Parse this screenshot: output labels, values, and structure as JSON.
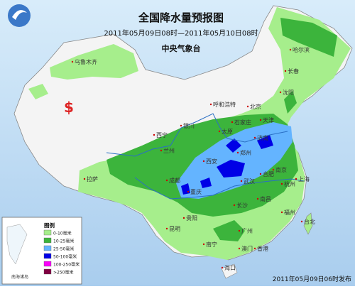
{
  "header": {
    "title": "全国降水量预报图",
    "subtitle": "2011年05月09日08时—2011年05月10日08时",
    "agency": "中央气象台"
  },
  "cities": [
    {
      "label": "乌鲁木齐"
    },
    {
      "label": "哈尔滨"
    },
    {
      "label": "长春"
    },
    {
      "label": "沈阳"
    },
    {
      "label": "呼和浩特"
    },
    {
      "label": "北京"
    },
    {
      "label": "天津"
    },
    {
      "label": "石家庄"
    },
    {
      "label": "银川"
    },
    {
      "label": "太原"
    },
    {
      "label": "济南"
    },
    {
      "label": "西宁"
    },
    {
      "label": "兰州"
    },
    {
      "label": "郑州"
    },
    {
      "label": "西安"
    },
    {
      "label": "合肥"
    },
    {
      "label": "南京"
    },
    {
      "label": "上海"
    },
    {
      "label": "拉萨"
    },
    {
      "label": "成都"
    },
    {
      "label": "武汉"
    },
    {
      "label": "杭州"
    },
    {
      "label": "重庆"
    },
    {
      "label": "长沙"
    },
    {
      "label": "南昌"
    },
    {
      "label": "福州"
    },
    {
      "label": "贵阳"
    },
    {
      "label": "台北"
    },
    {
      "label": "昆明"
    },
    {
      "label": "广州"
    },
    {
      "label": "南宁"
    },
    {
      "label": "香港"
    },
    {
      "label": "澳门"
    },
    {
      "label": "海口"
    }
  ],
  "legend": {
    "title": "图例",
    "items": [
      {
        "label": "0-10毫米",
        "color": "#a6ee8c"
      },
      {
        "label": "10-25毫米",
        "color": "#3cb43c"
      },
      {
        "label": "25-50毫米",
        "color": "#64b4ff"
      },
      {
        "label": "50-100毫米",
        "color": "#0000e6"
      },
      {
        "label": "100-250毫米",
        "color": "#fa00fa"
      },
      {
        "label": ">250毫米",
        "color": "#800040"
      }
    ]
  },
  "inset": {
    "label": "南海诸岛"
  },
  "footer": "2011年05月09日06时发布"
}
